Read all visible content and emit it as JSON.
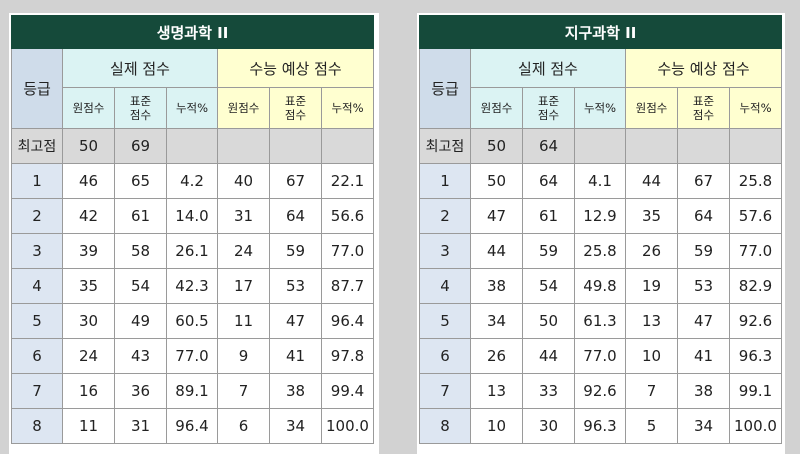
{
  "headers": {
    "grade": "등급",
    "actual": "실제 점수",
    "predicted": "수능 예상 점수",
    "raw": "원점수",
    "std": "표준 점수",
    "pct": "누적%",
    "max": "최고점"
  },
  "tables": [
    {
      "title": "생명과학 II",
      "max": {
        "raw": "50",
        "std": "69"
      },
      "rows": [
        {
          "grade": "1",
          "a_raw": "46",
          "a_std": "65",
          "a_pct": "4.2",
          "p_raw": "40",
          "p_std": "67",
          "p_pct": "22.1"
        },
        {
          "grade": "2",
          "a_raw": "42",
          "a_std": "61",
          "a_pct": "14.0",
          "p_raw": "31",
          "p_std": "64",
          "p_pct": "56.6"
        },
        {
          "grade": "3",
          "a_raw": "39",
          "a_std": "58",
          "a_pct": "26.1",
          "p_raw": "24",
          "p_std": "59",
          "p_pct": "77.0"
        },
        {
          "grade": "4",
          "a_raw": "35",
          "a_std": "54",
          "a_pct": "42.3",
          "p_raw": "17",
          "p_std": "53",
          "p_pct": "87.7"
        },
        {
          "grade": "5",
          "a_raw": "30",
          "a_std": "49",
          "a_pct": "60.5",
          "p_raw": "11",
          "p_std": "47",
          "p_pct": "96.4"
        },
        {
          "grade": "6",
          "a_raw": "24",
          "a_std": "43",
          "a_pct": "77.0",
          "p_raw": "9",
          "p_std": "41",
          "p_pct": "97.8"
        },
        {
          "grade": "7",
          "a_raw": "16",
          "a_std": "36",
          "a_pct": "89.1",
          "p_raw": "7",
          "p_std": "38",
          "p_pct": "99.4"
        },
        {
          "grade": "8",
          "a_raw": "11",
          "a_std": "31",
          "a_pct": "96.4",
          "p_raw": "6",
          "p_std": "34",
          "p_pct": "100.0"
        }
      ]
    },
    {
      "title": "지구과학 II",
      "max": {
        "raw": "50",
        "std": "64"
      },
      "rows": [
        {
          "grade": "1",
          "a_raw": "50",
          "a_std": "64",
          "a_pct": "4.1",
          "p_raw": "44",
          "p_std": "67",
          "p_pct": "25.8"
        },
        {
          "grade": "2",
          "a_raw": "47",
          "a_std": "61",
          "a_pct": "12.9",
          "p_raw": "35",
          "p_std": "64",
          "p_pct": "57.6"
        },
        {
          "grade": "3",
          "a_raw": "44",
          "a_std": "59",
          "a_pct": "25.8",
          "p_raw": "26",
          "p_std": "59",
          "p_pct": "77.0"
        },
        {
          "grade": "4",
          "a_raw": "38",
          "a_std": "54",
          "a_pct": "49.8",
          "p_raw": "19",
          "p_std": "53",
          "p_pct": "82.9"
        },
        {
          "grade": "5",
          "a_raw": "34",
          "a_std": "50",
          "a_pct": "61.3",
          "p_raw": "13",
          "p_std": "47",
          "p_pct": "92.6"
        },
        {
          "grade": "6",
          "a_raw": "26",
          "a_std": "44",
          "a_pct": "77.0",
          "p_raw": "10",
          "p_std": "41",
          "p_pct": "96.3"
        },
        {
          "grade": "7",
          "a_raw": "13",
          "a_std": "33",
          "a_pct": "92.6",
          "p_raw": "7",
          "p_std": "38",
          "p_pct": "99.1"
        },
        {
          "grade": "8",
          "a_raw": "10",
          "a_std": "30",
          "a_pct": "96.3",
          "p_raw": "5",
          "p_std": "34",
          "p_pct": "100.0"
        }
      ]
    }
  ]
}
